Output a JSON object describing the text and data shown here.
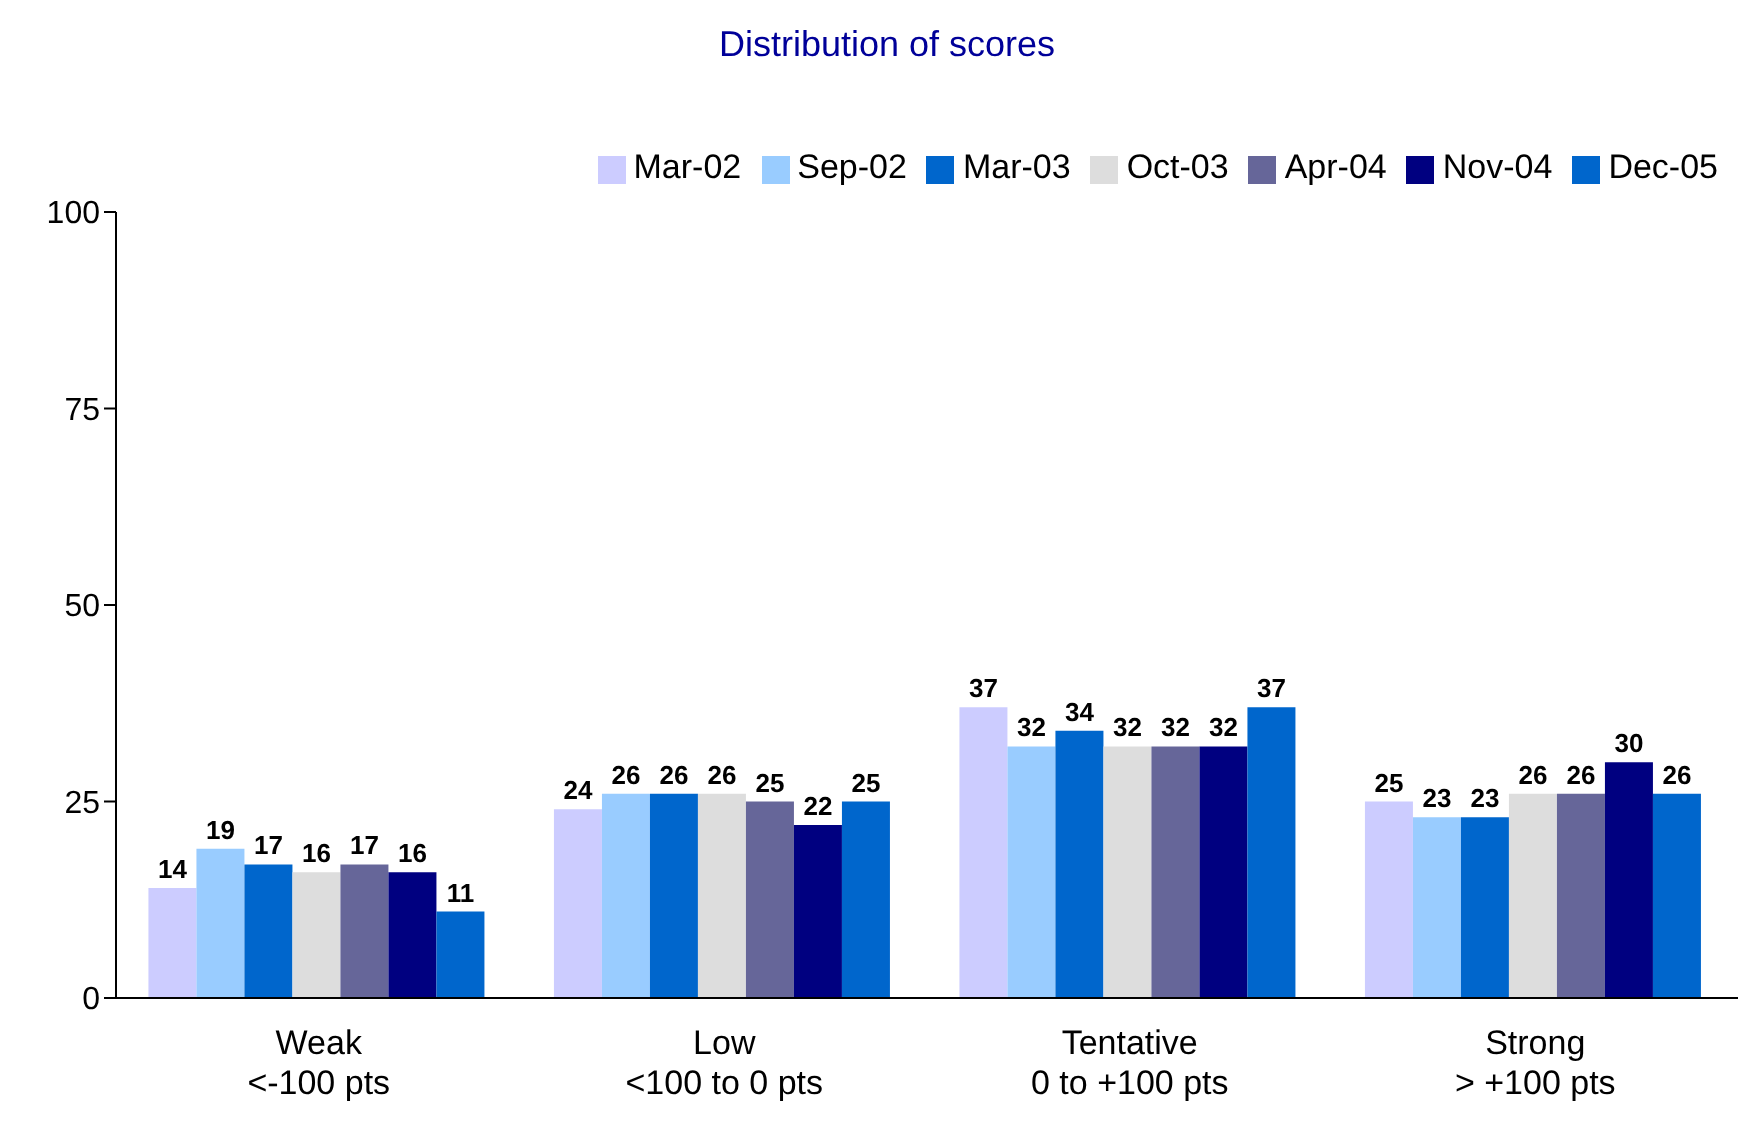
{
  "chart_data": {
    "type": "bar",
    "title": "Distribution of scores",
    "categories": [
      "Weak\n<-100 pts",
      "Low\n<100 to 0 pts",
      "Tentative\n0 to +100 pts",
      "Strong\n> +100 pts"
    ],
    "series": [
      {
        "name": "Mar-02",
        "color": "#ccccff",
        "values": [
          14,
          24,
          37,
          25
        ]
      },
      {
        "name": "Sep-02",
        "color": "#99ccff",
        "values": [
          19,
          26,
          32,
          23
        ]
      },
      {
        "name": "Mar-03",
        "color": "#0066cc",
        "values": [
          17,
          26,
          34,
          23
        ]
      },
      {
        "name": "Oct-03",
        "color": "#dddddd",
        "values": [
          16,
          26,
          32,
          26
        ]
      },
      {
        "name": "Apr-04",
        "color": "#666699",
        "values": [
          17,
          25,
          32,
          26
        ]
      },
      {
        "name": "Nov-04",
        "color": "#000080",
        "values": [
          16,
          22,
          32,
          30
        ]
      },
      {
        "name": "Dec-05",
        "color": "#0066cc",
        "values": [
          11,
          25,
          37,
          26
        ]
      }
    ],
    "ylim": [
      0,
      100
    ],
    "yticks": [
      0,
      25,
      50,
      75,
      100
    ],
    "legend": "top right",
    "data_labels": true
  }
}
